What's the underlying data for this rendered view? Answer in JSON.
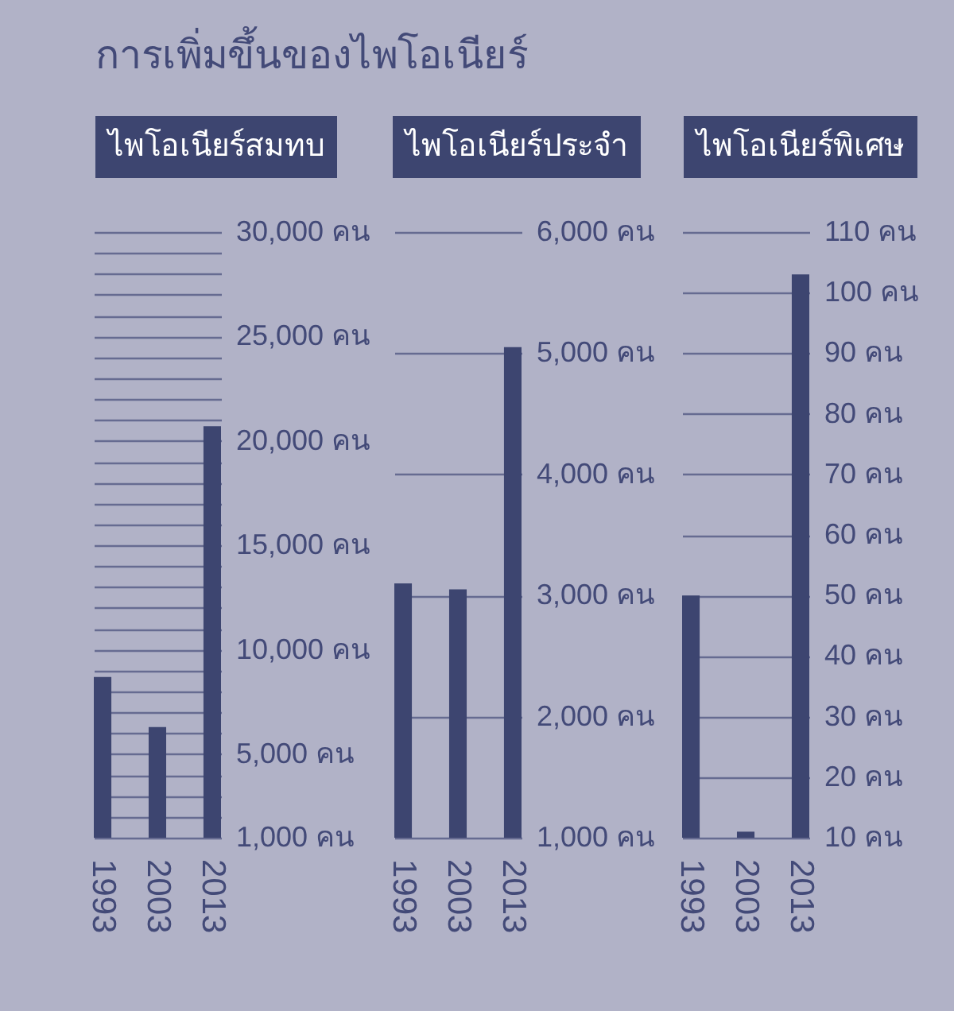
{
  "chart_data": [
    {
      "type": "bar",
      "title": "การเพิ่มขึ้นของไพโอเนียร์",
      "subtitle": "ไพโอเนียร์สมทบ",
      "categories": [
        "1993",
        "2003",
        "2013"
      ],
      "values": [
        8700,
        6300,
        20700
      ],
      "color": "#3d4570",
      "ylim": [
        1000,
        30000
      ],
      "yticks": [
        {
          "value": 1000,
          "label": "1,000 คน"
        },
        {
          "value": 2000,
          "label": null
        },
        {
          "value": 3000,
          "label": null
        },
        {
          "value": 4000,
          "label": null
        },
        {
          "value": 5000,
          "label": "5,000 คน"
        },
        {
          "value": 6000,
          "label": null
        },
        {
          "value": 7000,
          "label": null
        },
        {
          "value": 8000,
          "label": null
        },
        {
          "value": 9000,
          "label": null
        },
        {
          "value": 10000,
          "label": "10,000 คน"
        },
        {
          "value": 11000,
          "label": null
        },
        {
          "value": 12000,
          "label": null
        },
        {
          "value": 13000,
          "label": null
        },
        {
          "value": 14000,
          "label": null
        },
        {
          "value": 15000,
          "label": "15,000 คน"
        },
        {
          "value": 16000,
          "label": null
        },
        {
          "value": 17000,
          "label": null
        },
        {
          "value": 18000,
          "label": null
        },
        {
          "value": 19000,
          "label": null
        },
        {
          "value": 20000,
          "label": "20,000 คน"
        },
        {
          "value": 21000,
          "label": null
        },
        {
          "value": 22000,
          "label": null
        },
        {
          "value": 23000,
          "label": null
        },
        {
          "value": 24000,
          "label": null
        },
        {
          "value": 25000,
          "label": "25,000 คน"
        },
        {
          "value": 26000,
          "label": null
        },
        {
          "value": 27000,
          "label": null
        },
        {
          "value": 28000,
          "label": null
        },
        {
          "value": 29000,
          "label": null
        },
        {
          "value": 30000,
          "label": "30,000 คน"
        }
      ],
      "grid": "y"
    },
    {
      "type": "bar",
      "subtitle": "ไพโอเนียร์ประจำ",
      "categories": [
        "1993",
        "2003",
        "2013"
      ],
      "values": [
        3100,
        3050,
        5050
      ],
      "color": "#3d4570",
      "ylim": [
        1000,
        6000
      ],
      "yticks": [
        {
          "value": 1000,
          "label": "1,000 คน"
        },
        {
          "value": 2000,
          "label": "2,000 คน"
        },
        {
          "value": 3000,
          "label": "3,000 คน"
        },
        {
          "value": 4000,
          "label": "4,000 คน"
        },
        {
          "value": 5000,
          "label": "5,000 คน"
        },
        {
          "value": 6000,
          "label": "6,000 คน"
        }
      ],
      "grid": "y"
    },
    {
      "type": "bar",
      "subtitle": "ไพโอเนียร์พิเศษ",
      "categories": [
        "1993",
        "2003",
        "2013"
      ],
      "values": [
        50,
        11,
        103
      ],
      "color": "#3d4570",
      "ylim": [
        10,
        110
      ],
      "yticks": [
        {
          "value": 10,
          "label": "10 คน"
        },
        {
          "value": 20,
          "label": "20 คน"
        },
        {
          "value": 30,
          "label": "30 คน"
        },
        {
          "value": 40,
          "label": "40 คน"
        },
        {
          "value": 50,
          "label": "50 คน"
        },
        {
          "value": 60,
          "label": "60 คน"
        },
        {
          "value": 70,
          "label": "70 คน"
        },
        {
          "value": 80,
          "label": "80 คน"
        },
        {
          "value": 90,
          "label": "90 คน"
        },
        {
          "value": 100,
          "label": "100 คน"
        },
        {
          "value": 110,
          "label": "110 คน"
        }
      ],
      "grid": "y"
    }
  ]
}
